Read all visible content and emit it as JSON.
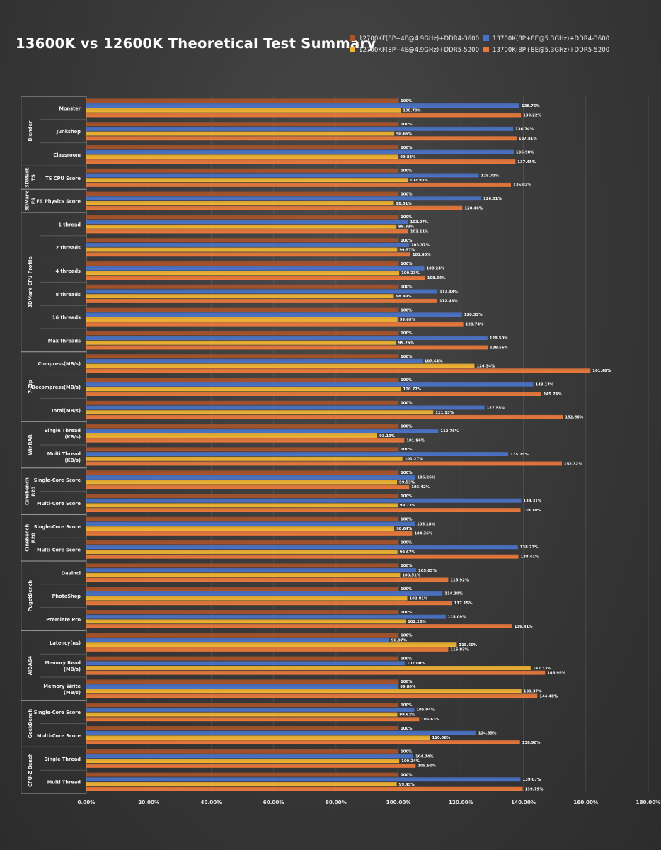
{
  "chart_data": {
    "type": "bar",
    "orientation": "horizontal",
    "title": "13600K vs 12600K Theoretical Test Summary",
    "xlim": [
      0,
      180
    ],
    "x_ticks": [
      "0.00%",
      "20.00%",
      "40.00%",
      "60.00%",
      "80.00%",
      "100.00%",
      "120.00%",
      "140.00%",
      "160.00%",
      "180.00%"
    ],
    "grid": "vertical",
    "legend_placement": "top-right",
    "series": [
      {
        "name": "12700KF(8P+4E@4.9GHz)+DDR4-3600",
        "color": "#a8532a"
      },
      {
        "name": "13700K(8P+8E@5.3GHz)+DDR4-3600",
        "color": "#4a72c6"
      },
      {
        "name": "12700KF(8P+4E@4.9GHz)+DDR5-5200",
        "color": "#f2b533"
      },
      {
        "name": "13700K(8P+8E@5.3GHz)+DDR5-5200",
        "color": "#e9793b"
      }
    ],
    "groups": [
      {
        "group": "Blender",
        "items": [
          {
            "label": "Monster",
            "values": [
              100,
              138.75,
              100.7,
              139.22
            ],
            "labels": [
              "100%",
              "138.75%",
              "100.70%",
              "139.22%"
            ]
          },
          {
            "label": "Junkshop",
            "values": [
              100,
              136.74,
              98.65,
              137.81
            ],
            "labels": [
              "100%",
              "136.74%",
              "98.65%",
              "137.81%"
            ]
          },
          {
            "label": "Classroom",
            "values": [
              100,
              136.9,
              99.83,
              137.45
            ],
            "labels": [
              "100%",
              "136.90%",
              "99.83%",
              "137.45%"
            ]
          }
        ]
      },
      {
        "group": "3DMark TS",
        "items": [
          {
            "label": "TS CPU Score",
            "values": [
              100,
              125.71,
              102.93,
              136.02
            ],
            "labels": [
              "100%",
              "125.71%",
              "102.93%",
              "136.02%"
            ]
          }
        ]
      },
      {
        "group": "3DMark FS",
        "items": [
          {
            "label": "FS Physics Score",
            "values": [
              100,
              126.51,
              98.51,
              120.46
            ],
            "labels": [
              "100%",
              "126.51%",
              "98.51%",
              "120.46%"
            ]
          }
        ]
      },
      {
        "group": "3DMark CPU Profile",
        "items": [
          {
            "label": "1 thread",
            "values": [
              100,
              103.07,
              99.33,
              103.11
            ],
            "labels": [
              "100%",
              "103.07%",
              "99.33%",
              "103.11%"
            ]
          },
          {
            "label": "2 threads",
            "values": [
              100,
              103.37,
              99.57,
              103.8
            ],
            "labels": [
              "100%",
              "103.37%",
              "99.57%",
              "103.80%"
            ]
          },
          {
            "label": "4 threads",
            "values": [
              100,
              108.24,
              100.23,
              108.54
            ],
            "labels": [
              "100%",
              "108.24%",
              "100.23%",
              "108.54%"
            ]
          },
          {
            "label": "8 threads",
            "values": [
              100,
              112.48,
              98.49,
              112.43
            ],
            "labels": [
              "100%",
              "112.48%",
              "98.49%",
              "112.43%"
            ]
          },
          {
            "label": "16 threads",
            "values": [
              100,
              120.33,
              99.69,
              120.74
            ],
            "labels": [
              "100%",
              "120.33%",
              "99.69%",
              "120.74%"
            ]
          },
          {
            "label": "Max threads",
            "values": [
              100,
              128.5,
              99.25,
              128.56
            ],
            "labels": [
              "100%",
              "128.50%",
              "99.25%",
              "128.56%"
            ]
          }
        ]
      },
      {
        "group": "7-Zip",
        "items": [
          {
            "label": "Compress(MB/s)",
            "values": [
              100,
              107.64,
              124.34,
              161.48
            ],
            "labels": [
              "100%",
              "107.64%",
              "124.34%",
              "161.48%"
            ]
          },
          {
            "label": "Decompress(MB/s)",
            "values": [
              100,
              143.17,
              100.77,
              145.74
            ],
            "labels": [
              "100%",
              "143.17%",
              "100.77%",
              "145.74%"
            ]
          },
          {
            "label": "Total(MB/s)",
            "values": [
              100,
              127.55,
              111.13,
              152.66
            ],
            "labels": [
              "100%",
              "127.55%",
              "111.13%",
              "152.66%"
            ]
          }
        ]
      },
      {
        "group": "WinRAR",
        "items": [
          {
            "label": "Single Thread\n(KB/s)",
            "values": [
              100,
              112.76,
              93.19,
              101.86
            ],
            "labels": [
              "100%",
              "112.76%",
              "93.19%",
              "101.86%"
            ]
          },
          {
            "label": "Multi Thread\n(KB/s)",
            "values": [
              100,
              135.15,
              101.27,
              152.32
            ],
            "labels": [
              "100%",
              "135.15%",
              "101.27%",
              "152.32%"
            ]
          }
        ]
      },
      {
        "group": "Cinebench R23",
        "items": [
          {
            "label": "Single-Core Score",
            "values": [
              100,
              105.26,
              99.53,
              103.42
            ],
            "labels": [
              "100%",
              "105.26%",
              "99.53%",
              "103.42%"
            ]
          },
          {
            "label": "Multi-Core Score",
            "values": [
              100,
              139.31,
              99.73,
              139.1
            ],
            "labels": [
              "100%",
              "139.31%",
              "99.73%",
              "139.10%"
            ]
          }
        ]
      },
      {
        "group": "Cinebench R20",
        "items": [
          {
            "label": "Single-Core Score",
            "values": [
              100,
              105.18,
              98.64,
              104.36
            ],
            "labels": [
              "100%",
              "105.18%",
              "98.64%",
              "104.36%"
            ]
          },
          {
            "label": "Multi-Core Score",
            "values": [
              100,
              138.23,
              99.67,
              138.41
            ],
            "labels": [
              "100%",
              "138.23%",
              "99.67%",
              "138.41%"
            ]
          }
        ]
      },
      {
        "group": "PugetBench",
        "items": [
          {
            "label": "Davinci",
            "values": [
              100,
              105.65,
              100.51,
              115.92
            ],
            "labels": [
              "100%",
              "105.65%",
              "100.51%",
              "115.92%"
            ]
          },
          {
            "label": "PhotoShop",
            "values": [
              100,
              114.1,
              102.81,
              117.15
            ],
            "labels": [
              "100%",
              "114.10%",
              "102.81%",
              "117.15%"
            ]
          },
          {
            "label": "Premiere Pro",
            "values": [
              100,
              115.09,
              102.26,
              136.41
            ],
            "labels": [
              "100%",
              "115.09%",
              "102.26%",
              "136.41%"
            ]
          }
        ]
      },
      {
        "group": "AIDA64",
        "items": [
          {
            "label": "Latency(ns)",
            "values": [
              100,
              96.97,
              118.66,
              115.93
            ],
            "labels": [
              "100%",
              "96.97%",
              "118.66%",
              "115.93%"
            ]
          },
          {
            "label": "Memory Read\n(MB/s)",
            "values": [
              100,
              102.0,
              142.33,
              146.95
            ],
            "labels": [
              "100%",
              "102.00%",
              "142.33%",
              "146.95%"
            ]
          },
          {
            "label": "Memory Write\n(MB/s)",
            "values": [
              100,
              99.8,
              139.37,
              144.48
            ],
            "labels": [
              "100%",
              "99.80%",
              "139.37%",
              "144.48%"
            ]
          }
        ]
      },
      {
        "group": "GeekBench",
        "items": [
          {
            "label": "Single-Core Score",
            "values": [
              100,
              105.04,
              99.62,
              106.63
            ],
            "labels": [
              "100%",
              "105.04%",
              "99.62%",
              "106.63%"
            ]
          },
          {
            "label": "Multi-Core Score",
            "values": [
              100,
              124.85,
              110.06,
              138.9
            ],
            "labels": [
              "100%",
              "124.85%",
              "110.06%",
              "138.90%"
            ]
          }
        ]
      },
      {
        "group": "CPU-Z Bench",
        "items": [
          {
            "label": "Single Thread",
            "values": [
              100,
              104.74,
              100.24,
              105.5
            ],
            "labels": [
              "100%",
              "104.74%",
              "100.24%",
              "105.50%"
            ]
          },
          {
            "label": "Multi Thread",
            "values": [
              100,
              139.07,
              99.45,
              139.79
            ],
            "labels": [
              "100%",
              "139.07%",
              "99.45%",
              "139.79%"
            ]
          }
        ]
      }
    ]
  }
}
